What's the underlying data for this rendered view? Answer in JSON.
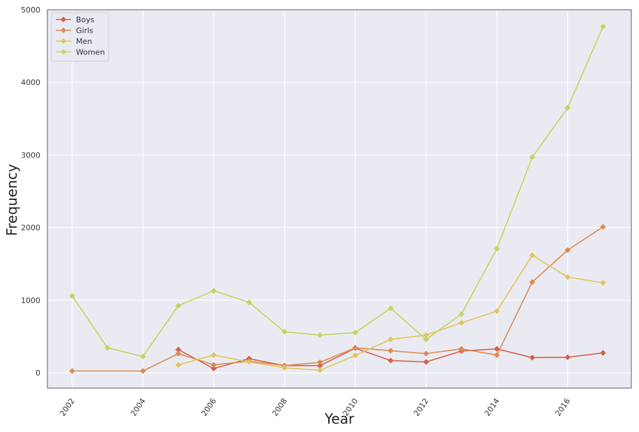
{
  "chart_data": {
    "type": "line",
    "title": "",
    "xlabel": "Year",
    "ylabel": "Frequency",
    "xlim": [
      2001.3,
      2017.8
    ],
    "ylim": [
      -210,
      5000
    ],
    "xticks": [
      2002,
      2004,
      2006,
      2008,
      2010,
      2012,
      2014,
      2016
    ],
    "yticks": [
      0,
      1000,
      2000,
      3000,
      4000,
      5000
    ],
    "grid": true,
    "legend_position": "top-left",
    "marker": "diamond",
    "background": "#eaeaf2",
    "series": [
      {
        "name": "Boys",
        "color": "#d65f4b",
        "x": [
          2005,
          2006,
          2007,
          2008,
          2009,
          2010,
          2011,
          2012,
          2013,
          2014,
          2015,
          2016,
          2017
        ],
        "y": [
          320,
          60,
          195,
          100,
          100,
          340,
          170,
          150,
          300,
          330,
          210,
          215,
          275
        ]
      },
      {
        "name": "Girls",
        "color": "#da8c4f",
        "x": [
          2002,
          2004,
          2005,
          2006,
          2007,
          2008,
          2009,
          2010,
          2011,
          2012,
          2013,
          2014,
          2015,
          2016,
          2017
        ],
        "y": [
          25,
          25,
          265,
          110,
          160,
          100,
          145,
          345,
          305,
          265,
          330,
          245,
          1250,
          1690,
          2010
        ]
      },
      {
        "name": "Men",
        "color": "#dec658",
        "x": [
          2005,
          2006,
          2007,
          2008,
          2009,
          2010,
          2011,
          2012,
          2013,
          2014,
          2015,
          2016,
          2017
        ],
        "y": [
          110,
          245,
          150,
          70,
          35,
          240,
          460,
          520,
          690,
          850,
          1620,
          1320,
          1240
        ]
      },
      {
        "name": "Women",
        "color": "#bfd75a",
        "x": [
          2002,
          2003,
          2004,
          2005,
          2006,
          2007,
          2008,
          2009,
          2010,
          2011,
          2012,
          2013,
          2014,
          2015,
          2016,
          2017
        ],
        "y": [
          1060,
          345,
          225,
          925,
          1130,
          970,
          565,
          520,
          555,
          890,
          460,
          810,
          1710,
          2970,
          3650,
          4770
        ]
      }
    ]
  }
}
